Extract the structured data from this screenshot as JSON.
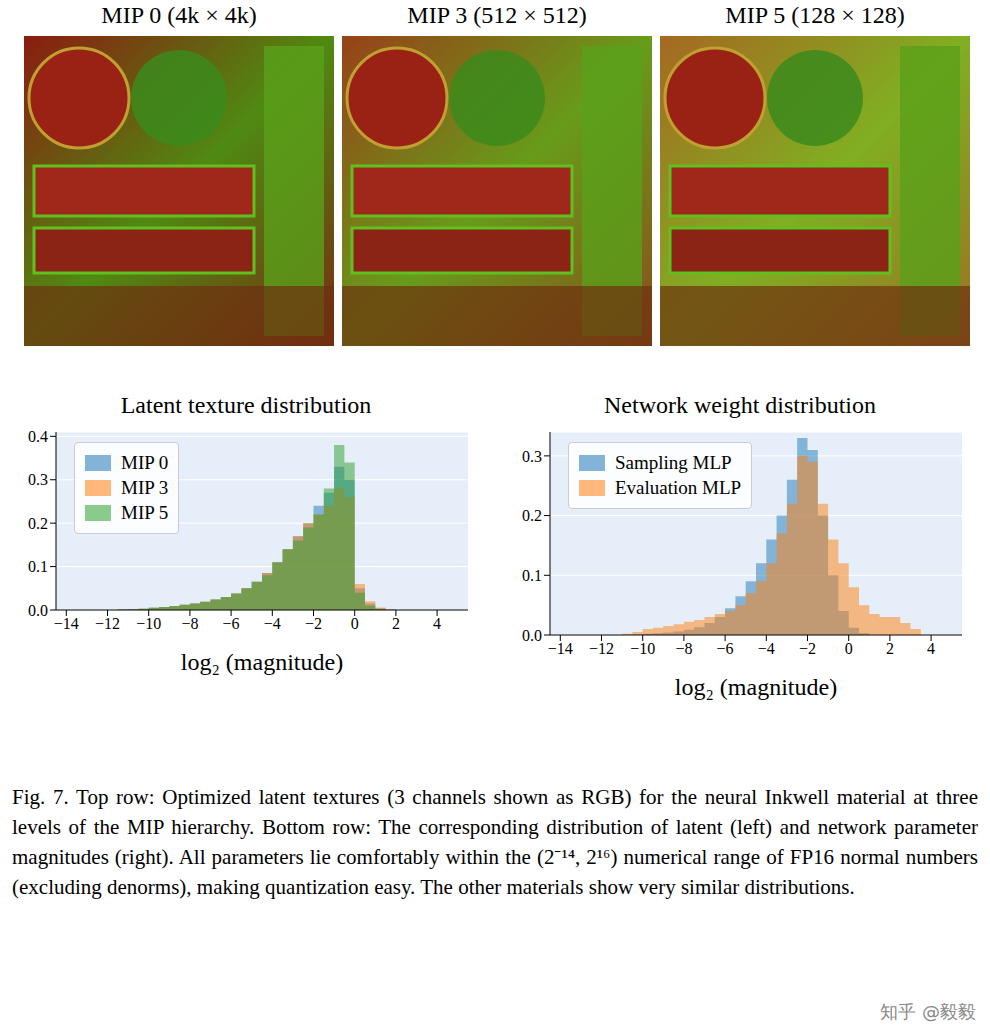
{
  "images": [
    {
      "title": "MIP 0 (4k × 4k)"
    },
    {
      "title": "MIP 3 (512 × 512)"
    },
    {
      "title": "MIP 5 (128 × 128)"
    }
  ],
  "chart_data": [
    {
      "type": "histogram",
      "title": "Latent texture distribution",
      "x_label": "log₂ (magnitude)",
      "bins": [
        -12,
        -11.5,
        -11,
        -10.5,
        -10,
        -9.5,
        -9,
        -8.5,
        -8,
        -7.5,
        -7,
        -6.5,
        -6,
        -5.5,
        -5,
        -4.5,
        -4,
        -3.5,
        -3,
        -2.5,
        -2,
        -1.5,
        -1,
        -0.5,
        0,
        0.5,
        1,
        1.5,
        2
      ],
      "series": [
        {
          "name": "MIP 0",
          "color": "#1f77b4",
          "values": [
            0,
            0.001,
            0.002,
            0.003,
            0.005,
            0.007,
            0.009,
            0.012,
            0.015,
            0.019,
            0.024,
            0.03,
            0.038,
            0.05,
            0.065,
            0.085,
            0.11,
            0.14,
            0.17,
            0.2,
            0.24,
            0.27,
            0.33,
            0.3,
            0.05,
            0.015,
            0.004,
            0.001
          ]
        },
        {
          "name": "MIP 3",
          "color": "#ff7f0e",
          "values": [
            0,
            0.001,
            0.002,
            0.003,
            0.005,
            0.007,
            0.009,
            0.012,
            0.015,
            0.019,
            0.024,
            0.03,
            0.038,
            0.05,
            0.065,
            0.085,
            0.11,
            0.14,
            0.17,
            0.2,
            0.22,
            0.24,
            0.28,
            0.26,
            0.06,
            0.02,
            0.006,
            0.002
          ]
        },
        {
          "name": "MIP 5",
          "color": "#2ca02c",
          "values": [
            0,
            0.001,
            0.002,
            0.003,
            0.005,
            0.007,
            0.009,
            0.012,
            0.015,
            0.019,
            0.024,
            0.03,
            0.038,
            0.05,
            0.065,
            0.08,
            0.11,
            0.14,
            0.16,
            0.19,
            0.22,
            0.28,
            0.38,
            0.34,
            0.04,
            0.01,
            0.002,
            0
          ]
        }
      ],
      "xlim": [
        -14.5,
        5.5
      ],
      "xticks": [
        {
          "value": -14,
          "label": "−14"
        },
        {
          "value": -12,
          "label": "−12"
        },
        {
          "value": -10,
          "label": "−10"
        },
        {
          "value": -8,
          "label": "−8"
        },
        {
          "value": -6,
          "label": "−6"
        },
        {
          "value": -4,
          "label": "−4"
        },
        {
          "value": -2,
          "label": "−2"
        },
        0,
        2,
        4
      ],
      "ylim": [
        0,
        0.41
      ],
      "yticks": [
        {
          "value": 0,
          "label": "0.0"
        },
        0.1,
        0.2,
        0.3,
        0.4
      ],
      "grid": true,
      "legend": "upper left"
    },
    {
      "type": "histogram",
      "title": "Network weight distribution",
      "x_label": "log₂ (magnitude)",
      "bins": [
        -11,
        -10.5,
        -10,
        -9.5,
        -9,
        -8.5,
        -8,
        -7.5,
        -7,
        -6.5,
        -6,
        -5.5,
        -5,
        -4.5,
        -4,
        -3.5,
        -3,
        -2.5,
        -2,
        -1.5,
        -1,
        -0.5,
        0,
        0.5,
        1,
        1.5,
        2,
        2.5,
        3,
        3.5,
        4
      ],
      "series": [
        {
          "name": "Sampling MLP",
          "color": "#1f77b4",
          "values": [
            0,
            0.001,
            0.002,
            0.003,
            0.004,
            0.006,
            0.009,
            0.013,
            0.02,
            0.03,
            0.045,
            0.065,
            0.09,
            0.12,
            0.16,
            0.2,
            0.26,
            0.33,
            0.31,
            0.2,
            0.1,
            0.04,
            0.012,
            0.003,
            0,
            0,
            0,
            0,
            0,
            0
          ]
        },
        {
          "name": "Evaluation MLP",
          "color": "#ff7f0e",
          "values": [
            0.002,
            0.005,
            0.01,
            0.012,
            0.015,
            0.018,
            0.022,
            0.025,
            0.03,
            0.035,
            0.04,
            0.05,
            0.07,
            0.09,
            0.12,
            0.17,
            0.22,
            0.3,
            0.29,
            0.22,
            0.16,
            0.12,
            0.08,
            0.05,
            0.035,
            0.03,
            0.03,
            0.02,
            0.01,
            0
          ]
        }
      ],
      "xlim": [
        -14.5,
        5.5
      ],
      "xticks": [
        {
          "value": -14,
          "label": "−14"
        },
        {
          "value": -12,
          "label": "−12"
        },
        {
          "value": -10,
          "label": "−10"
        },
        {
          "value": -8,
          "label": "−8"
        },
        {
          "value": -6,
          "label": "−6"
        },
        {
          "value": -4,
          "label": "−4"
        },
        {
          "value": -2,
          "label": "−2"
        },
        0,
        2,
        4
      ],
      "ylim": [
        0,
        0.34
      ],
      "yticks": [
        {
          "value": 0,
          "label": "0.0"
        },
        0.1,
        0.2,
        0.3
      ],
      "grid": true,
      "legend": "upper left"
    }
  ],
  "caption": "Fig. 7.  Top row: Optimized latent textures (3 channels shown as RGB) for the neural Inkwell material at three levels of the MIP hierarchy. Bottom row: The corresponding distribution of latent (left) and network parameter magnitudes (right). All parameters lie comfortably within the (2⁻¹⁴, 2¹⁶) numerical range of FP16 normal numbers (excluding denorms), making quantization easy. The other materials show very similar distributions.",
  "watermark": "知乎 @毅毅"
}
